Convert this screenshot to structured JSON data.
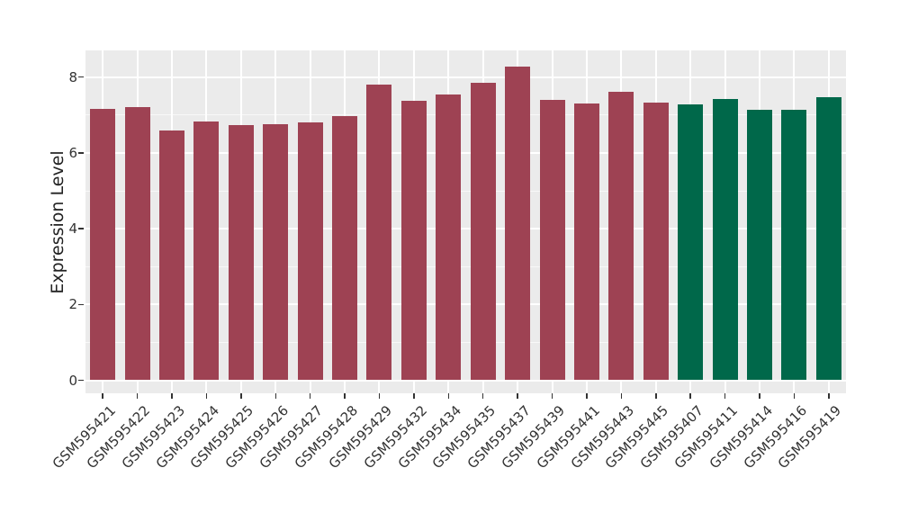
{
  "chart_data": {
    "type": "bar",
    "title": "",
    "xlabel": "",
    "ylabel": "Expression Level",
    "ylim": [
      0,
      8.69
    ],
    "yticks": [
      0,
      2,
      4,
      6,
      8
    ],
    "yticks_minor": [
      1,
      3,
      5,
      7
    ],
    "grid": "white major+minor horizontal lines and white major vertical line per category on gray panel",
    "legend_position": "none",
    "panel_bg": "#EBEBEB",
    "grid_color": "#FFFFFF",
    "axis_text_color": "#333333",
    "colors": {
      "group1": "#9E4253",
      "group2": "#00684A"
    },
    "bars": [
      {
        "label": "GSM595421",
        "value": 7.15,
        "group": "group1"
      },
      {
        "label": "GSM595422",
        "value": 7.22,
        "group": "group1"
      },
      {
        "label": "GSM595423",
        "value": 6.58,
        "group": "group1"
      },
      {
        "label": "GSM595424",
        "value": 6.84,
        "group": "group1"
      },
      {
        "label": "GSM595425",
        "value": 6.74,
        "group": "group1"
      },
      {
        "label": "GSM595426",
        "value": 6.76,
        "group": "group1"
      },
      {
        "label": "GSM595427",
        "value": 6.8,
        "group": "group1"
      },
      {
        "label": "GSM595428",
        "value": 6.97,
        "group": "group1"
      },
      {
        "label": "GSM595429",
        "value": 7.8,
        "group": "group1"
      },
      {
        "label": "GSM595432",
        "value": 7.37,
        "group": "group1"
      },
      {
        "label": "GSM595434",
        "value": 7.55,
        "group": "group1"
      },
      {
        "label": "GSM595435",
        "value": 7.86,
        "group": "group1"
      },
      {
        "label": "GSM595437",
        "value": 8.27,
        "group": "group1"
      },
      {
        "label": "GSM595439",
        "value": 7.39,
        "group": "group1"
      },
      {
        "label": "GSM595441",
        "value": 7.3,
        "group": "group1"
      },
      {
        "label": "GSM595443",
        "value": 7.62,
        "group": "group1"
      },
      {
        "label": "GSM595445",
        "value": 7.33,
        "group": "group1"
      },
      {
        "label": "GSM595407",
        "value": 7.27,
        "group": "group2"
      },
      {
        "label": "GSM595411",
        "value": 7.42,
        "group": "group2"
      },
      {
        "label": "GSM595414",
        "value": 7.14,
        "group": "group2"
      },
      {
        "label": "GSM595416",
        "value": 7.14,
        "group": "group2"
      },
      {
        "label": "GSM595419",
        "value": 7.48,
        "group": "group2"
      }
    ]
  }
}
